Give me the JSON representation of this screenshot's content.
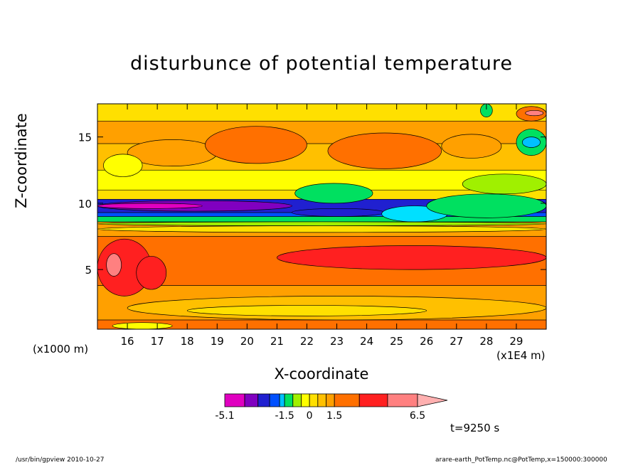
{
  "chart_data": {
    "type": "heatmap",
    "title": "disturbunce of potential temperature",
    "xlabel": "X-coordinate",
    "ylabel": "Z-coordinate",
    "x_unit_left": "(x1000 m)",
    "x_unit_right": "(x1E4 m)",
    "x_ticks": [
      "16",
      "17",
      "18",
      "19",
      "20",
      "21",
      "22",
      "23",
      "24",
      "25",
      "26",
      "27",
      "28",
      "29"
    ],
    "x_tick_values": [
      16,
      17,
      18,
      19,
      20,
      21,
      22,
      23,
      24,
      25,
      26,
      27,
      28,
      29
    ],
    "xlim": [
      15.0,
      30.0
    ],
    "y_ticks": [
      "5",
      "10",
      "15"
    ],
    "y_tick_values": [
      5,
      10,
      15
    ],
    "ylim": [
      0.5,
      17.5
    ],
    "colorbar": {
      "ticks": [
        "-5.1",
        "-1.5",
        "0",
        "1.5",
        "6.5"
      ],
      "tick_values": [
        -5.1,
        -1.5,
        0,
        1.5,
        6.5
      ],
      "levels": [
        -5.1,
        -3.9,
        -3.1,
        -2.4,
        -1.8,
        -1.5,
        -1.0,
        -0.5,
        0,
        0.5,
        1.0,
        1.5,
        3.0,
        4.7,
        6.5
      ],
      "colors": [
        "#e000c0",
        "#8000c0",
        "#2020d0",
        "#0050ff",
        "#00c0ff",
        "#00e060",
        "#a0f000",
        "#ffff00",
        "#ffe000",
        "#ffc000",
        "#ffa000",
        "#ff7000",
        "#ff2020",
        "#ff8080"
      ],
      "extend_color": "#ffb0b0"
    },
    "bands": [
      {
        "zmin": 0.5,
        "zmax": 1.2,
        "color": "#ff7000"
      },
      {
        "zmin": 1.2,
        "zmax": 3.8,
        "color": "#ffa000"
      },
      {
        "zmin": 3.8,
        "zmax": 7.5,
        "color": "#ff7000"
      },
      {
        "zmin": 7.5,
        "zmax": 8.6,
        "color": "#ffa000"
      },
      {
        "zmin": 8.6,
        "zmax": 9.0,
        "color": "#00e060"
      },
      {
        "zmin": 9.0,
        "zmax": 9.3,
        "color": "#0050ff"
      },
      {
        "zmin": 9.3,
        "zmax": 10.3,
        "color": "#2020d0"
      },
      {
        "zmin": 10.3,
        "zmax": 11.0,
        "color": "#ffe000"
      },
      {
        "zmin": 11.0,
        "zmax": 12.5,
        "color": "#ffff00"
      },
      {
        "zmin": 12.5,
        "zmax": 14.5,
        "color": "#ffc000"
      },
      {
        "zmin": 14.5,
        "zmax": 16.2,
        "color": "#ffa000"
      },
      {
        "zmin": 16.2,
        "zmax": 17.5,
        "color": "#ffe000"
      }
    ],
    "features": [
      {
        "x0": 15.0,
        "x1": 21.5,
        "zmin": 9.4,
        "zmax": 10.2,
        "color": "#8000c0"
      },
      {
        "x0": 15.0,
        "x1": 18.5,
        "zmin": 9.6,
        "zmax": 10.0,
        "color": "#e000c0"
      },
      {
        "x0": 21.5,
        "x1": 24.6,
        "zmin": 9.0,
        "zmax": 9.6,
        "color": "#2020d0"
      },
      {
        "x0": 24.5,
        "x1": 26.7,
        "zmin": 8.6,
        "zmax": 9.8,
        "color": "#00e0ff"
      },
      {
        "x0": 21.6,
        "x1": 24.2,
        "zmin": 10.0,
        "zmax": 11.5,
        "color": "#00e060"
      },
      {
        "x0": 26.0,
        "x1": 30.0,
        "zmin": 8.9,
        "zmax": 10.7,
        "color": "#00e060"
      },
      {
        "x0": 27.2,
        "x1": 30.0,
        "zmin": 10.7,
        "zmax": 12.2,
        "color": "#a0f000"
      },
      {
        "x0": 21.0,
        "x1": 30.0,
        "zmin": 5.0,
        "zmax": 6.8,
        "color": "#ff2020"
      },
      {
        "x0": 15.0,
        "x1": 16.8,
        "zmin": 3.0,
        "zmax": 7.3,
        "color": "#ff2020"
      },
      {
        "x0": 15.3,
        "x1": 15.8,
        "zmin": 4.5,
        "zmax": 6.2,
        "color": "#ff8080"
      },
      {
        "x0": 16.3,
        "x1": 17.3,
        "zmin": 3.5,
        "zmax": 6.0,
        "color": "#ff2020"
      },
      {
        "x0": 16.0,
        "x1": 19.0,
        "zmin": 12.8,
        "zmax": 14.8,
        "color": "#ffa000"
      },
      {
        "x0": 18.6,
        "x1": 22.0,
        "zmin": 13.0,
        "zmax": 15.8,
        "color": "#ff7000"
      },
      {
        "x0": 22.7,
        "x1": 26.5,
        "zmin": 12.6,
        "zmax": 15.3,
        "color": "#ff7000"
      },
      {
        "x0": 26.5,
        "x1": 28.5,
        "zmin": 13.4,
        "zmax": 15.2,
        "color": "#ffa000"
      },
      {
        "x0": 27.8,
        "x1": 28.2,
        "zmin": 16.5,
        "zmax": 17.5,
        "color": "#00e060"
      },
      {
        "x0": 29.0,
        "x1": 30.0,
        "zmin": 16.2,
        "zmax": 17.3,
        "color": "#ff7000"
      },
      {
        "x0": 29.3,
        "x1": 29.9,
        "zmin": 16.6,
        "zmax": 17.0,
        "color": "#ff8080"
      },
      {
        "x0": 29.0,
        "x1": 30.0,
        "zmin": 13.6,
        "zmax": 15.6,
        "color": "#00e060"
      },
      {
        "x0": 29.2,
        "x1": 29.8,
        "zmin": 14.2,
        "zmax": 15.0,
        "color": "#00c0ff"
      },
      {
        "x0": 15.2,
        "x1": 16.5,
        "zmin": 12.0,
        "zmax": 13.7,
        "color": "#ffff00"
      },
      {
        "x0": 16.0,
        "x1": 30.0,
        "zmin": 1.2,
        "zmax": 3.0,
        "color": "#ffc000"
      },
      {
        "x0": 18.0,
        "x1": 26.0,
        "zmin": 1.5,
        "zmax": 2.3,
        "color": "#ffe000"
      },
      {
        "x0": 15.5,
        "x1": 17.5,
        "zmin": 0.5,
        "zmax": 1.0,
        "color": "#ffff00"
      },
      {
        "x0": 15.0,
        "x1": 30.0,
        "zmin": 7.8,
        "zmax": 8.3,
        "color": "#ffe000"
      },
      {
        "x0": 15.0,
        "x1": 30.0,
        "zmin": 8.3,
        "zmax": 8.6,
        "color": "#a0f000"
      }
    ]
  },
  "time_label": "t=9250 s",
  "footer": {
    "left": "/usr/bin/gpview   2010-10-27",
    "right": "arare-earth_PotTemp.nc@PotTemp,x=150000:300000"
  }
}
